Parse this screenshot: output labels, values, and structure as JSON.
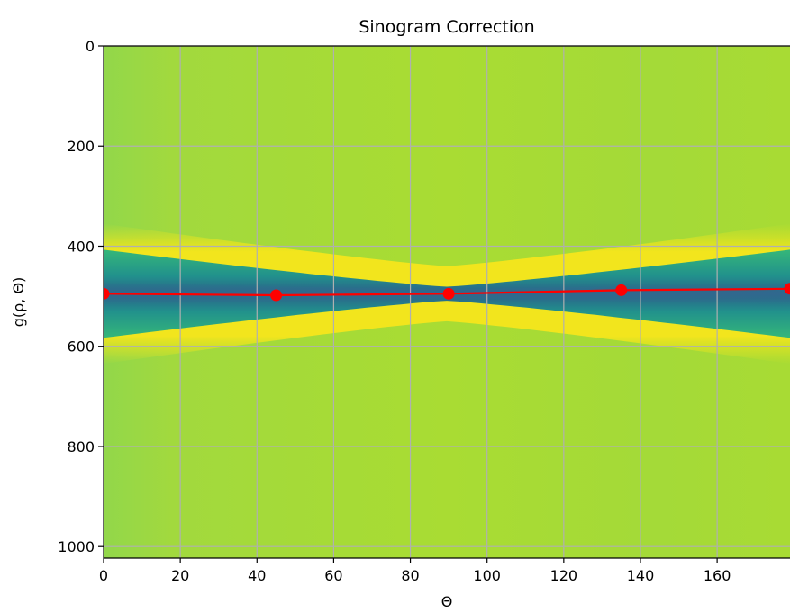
{
  "chart_data": {
    "type": "heatmap",
    "title": "Sinogram Correction",
    "xlabel": "Θ",
    "ylabel": "g(ρ, Θ)",
    "xlim": [
      0,
      179
    ],
    "ylim": [
      1023,
      0
    ],
    "y_inverted": true,
    "grid": true,
    "x_ticks": [
      0,
      20,
      40,
      60,
      80,
      100,
      120,
      140,
      160
    ],
    "y_ticks": [
      0,
      200,
      400,
      600,
      800,
      1000
    ],
    "x_tick_labels": [
      "0",
      "20",
      "40",
      "60",
      "80",
      "100",
      "120",
      "140",
      "160"
    ],
    "y_tick_labels": [
      "0",
      "200",
      "400",
      "600",
      "800",
      "1000"
    ],
    "series": [
      {
        "x": [
          0,
          45,
          90,
          135,
          179
        ],
        "y": [
          495,
          498,
          495,
          488,
          485
        ],
        "color": "#ff0000"
      }
    ],
    "heatmap": {
      "colormap": "viridis",
      "background_color": "#a3d83a",
      "band_color": "#1f7f8e",
      "highlight_color": "#f2e51d"
    }
  }
}
